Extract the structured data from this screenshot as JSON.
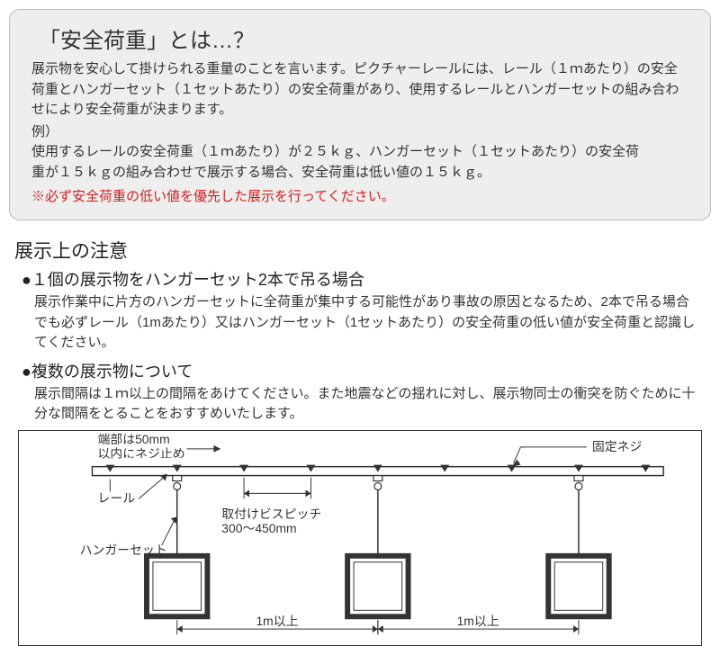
{
  "infoBox": {
    "title": "「安全荷重」とは…？",
    "body": "展示物を安心して掛けられる重量のことを言います。ピクチャーレールには、レール（１ｍあたり）の安全荷重とハンガーセット（１セットあたり）の安全荷重があり、使用するレールとハンガーセットの組み合わせにより安全荷重が決まります。",
    "exampleLabel": "例）",
    "exampleText": "使用するレールの安全荷重（１ｍあたり）が２５ｋｇ、ハンガーセット（１セットあたり）の安全荷重が１５ｋｇの組み合わせで展示する場合、安全荷重は低い値の１５ｋｇ。",
    "warning": "※必ず安全荷重の低い値を優先した展示を行ってください。"
  },
  "section": {
    "title": "展示上の注意",
    "sub1Title": "●１個の展示物をハンガーセット2本で吊る場合",
    "sub1Body": "展示作業中に片方のハンガーセットに全荷重が集中する可能性があり事故の原因となるため、2本で吊る場合でも必ずレール（1mあたり）又はハンガーセット（1セットあたり）の安全荷重の低い値が安全荷重と認識してください。",
    "sub2Title": "●複数の展示物について",
    "sub2Body": "展示間隔は１ｍ以上の間隔をあけてください。また地震などの揺れに対し、展示物同士の衝突を防ぐために十分な間隔をとることをおすすめいたします。"
  },
  "diagram": {
    "labels": {
      "edgeNote1": "端部は50mm",
      "edgeNote2": "以内にネジ止め",
      "fixScrew": "固定ネジ",
      "rail": "レール",
      "pitch1": "取付けビスピッチ",
      "pitch2": "300～450mm",
      "hangerSet": "ハンガーセット",
      "spacing": "1m以上"
    },
    "layout": {
      "railY": 40,
      "railHeight": 10,
      "screwsX": [
        100,
        175,
        250,
        325,
        400,
        475,
        550,
        625,
        700
      ],
      "hangersX": [
        175,
        400,
        625
      ],
      "hangerDropTop": 50,
      "frameTopY": 140,
      "frameSize": 68,
      "frameStroke": 6
    },
    "colors": {
      "stroke": "#333333",
      "fill": "#ffffff",
      "railFill": "#ffffff"
    }
  }
}
